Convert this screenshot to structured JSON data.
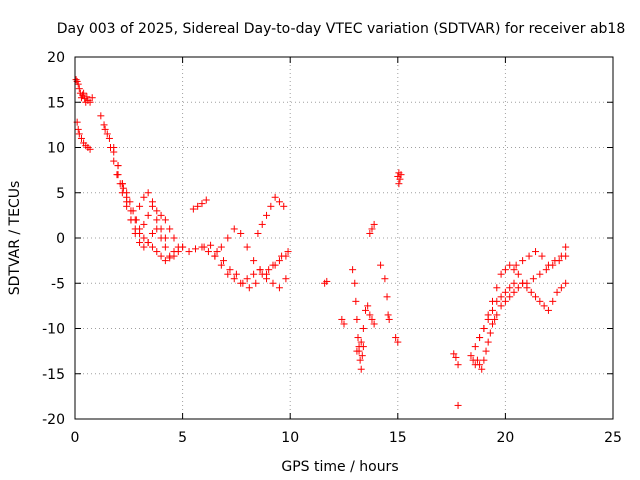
{
  "chart_data": {
    "type": "scatter",
    "title": "Day 003 of 2025, Sidereal Day-to-day VTEC variation (SDTVAR) for receiver ab18",
    "xlabel": "GPS time / hours",
    "ylabel": "SDTVAR / TECUs",
    "xlim": [
      0,
      25
    ],
    "ylim": [
      -20,
      20
    ],
    "xticks": [
      0,
      5,
      10,
      15,
      20,
      25
    ],
    "yticks": [
      -20,
      -15,
      -10,
      -5,
      0,
      5,
      10,
      15,
      20
    ],
    "grid": true,
    "marker": "plus",
    "color": "#ff0000",
    "series": [
      {
        "x": [
          0.05,
          0.1,
          0.15,
          0.2,
          0.25,
          0.3,
          0.35,
          0.4,
          0.45,
          0.5,
          0.55,
          0.6,
          0.7,
          0.8,
          0.1,
          0.15,
          0.2,
          0.3,
          0.4,
          0.5,
          0.6,
          0.7,
          1.2,
          1.35,
          1.5,
          1.65,
          1.8,
          1.95,
          2.1,
          2.25,
          2.4,
          2.55,
          2.7,
          2.85,
          3.0,
          3.2,
          3.4,
          3.6,
          3.8,
          4.0,
          4.2,
          4.4,
          4.6,
          4.8,
          5.0,
          1.4,
          1.6,
          1.8,
          2.0,
          2.2,
          2.4,
          2.6,
          2.8,
          3.0,
          3.2,
          3.4,
          3.6,
          3.8,
          4.0,
          4.2,
          4.4,
          4.6,
          4.8,
          1.8,
          2.0,
          2.2,
          2.4,
          2.6,
          2.8,
          3.0,
          3.2,
          3.4,
          3.6,
          3.8,
          4.0,
          4.2,
          4.4,
          4.6,
          2.0,
          2.2,
          2.4,
          2.6,
          2.8,
          3.0,
          3.2,
          3.4,
          3.6,
          3.8,
          4.0,
          4.2,
          5.0,
          5.3,
          5.6,
          5.9,
          6.2,
          6.5,
          6.8,
          7.1,
          7.4,
          7.7,
          8.0,
          8.3,
          8.6,
          8.9,
          9.2,
          9.5,
          9.8,
          5.5,
          5.7,
          5.9,
          6.1,
          6.0,
          6.3,
          6.6,
          6.9,
          7.2,
          7.5,
          7.8,
          8.1,
          8.4,
          8.7,
          9.0,
          9.3,
          9.6,
          9.9,
          6.5,
          6.8,
          7.1,
          7.4,
          7.7,
          8.0,
          8.3,
          8.6,
          8.9,
          9.2,
          9.5,
          9.8,
          8.5,
          8.7,
          8.9,
          9.1,
          9.3,
          9.5,
          9.7,
          11.6,
          11.7,
          12.4,
          12.5,
          12.9,
          13.0,
          13.05,
          13.1,
          13.15,
          13.2,
          13.25,
          13.3,
          13.35,
          13.4,
          13.1,
          13.2,
          13.3,
          13.4,
          13.5,
          13.6,
          13.7,
          13.8,
          13.9,
          13.7,
          13.8,
          13.9,
          14.2,
          14.4,
          14.5,
          14.55,
          14.6,
          14.9,
          15.0,
          15.05,
          15.1,
          15.15,
          15.0,
          15.05,
          17.6,
          17.7,
          17.8,
          17.8,
          18.4,
          18.5,
          18.6,
          18.7,
          18.8,
          18.9,
          19.0,
          19.1,
          19.2,
          19.3,
          19.4,
          19.5,
          19.6,
          19.8,
          20.0,
          20.2,
          20.4,
          18.6,
          18.8,
          19.0,
          19.2,
          19.4,
          19.6,
          19.8,
          20.0,
          20.2,
          20.4,
          20.6,
          20.8,
          18.8,
          19.0,
          19.2,
          19.4,
          19.6,
          19.8,
          20.0,
          20.2,
          20.4,
          20.6,
          20.8,
          21.0,
          21.2,
          21.4,
          21.6,
          21.8,
          22.0,
          22.2,
          22.4,
          22.6,
          22.8,
          20.5,
          20.8,
          21.1,
          21.4,
          21.7,
          22.0,
          22.3,
          22.6,
          22.8,
          21.0,
          21.3,
          21.6,
          21.9,
          22.2,
          22.5,
          22.8
        ],
        "y": [
          17.5,
          17.3,
          17.0,
          16.5,
          16.0,
          15.5,
          15.8,
          16.0,
          15.4,
          15.0,
          15.6,
          15.2,
          15.0,
          15.5,
          12.8,
          12.0,
          11.5,
          11.0,
          10.5,
          10.2,
          10.0,
          9.8,
          13.5,
          12.5,
          11.5,
          10.0,
          8.5,
          7.0,
          6.0,
          5.5,
          5.0,
          4.0,
          3.0,
          2.0,
          1.0,
          0.0,
          -0.5,
          -1.0,
          -1.5,
          -2.0,
          -2.5,
          -2.2,
          -2.0,
          -1.5,
          -1.0,
          12.0,
          11.0,
          10.0,
          8.0,
          6.0,
          4.0,
          2.0,
          0.5,
          -0.5,
          -1.0,
          -0.5,
          0.5,
          1.0,
          0.0,
          -1.0,
          -2.0,
          -1.5,
          -1.0,
          9.5,
          8.0,
          6.0,
          4.5,
          3.0,
          2.0,
          3.5,
          4.5,
          5.0,
          4.0,
          3.0,
          2.5,
          2.0,
          1.0,
          0.0,
          7.0,
          5.0,
          3.5,
          2.0,
          1.0,
          0.5,
          1.5,
          2.5,
          3.5,
          2.0,
          1.0,
          0.0,
          -1.0,
          -1.5,
          -1.2,
          -1.0,
          -1.5,
          -2.0,
          -3.0,
          -4.0,
          -4.5,
          -5.0,
          -4.5,
          -4.0,
          -3.5,
          -4.0,
          -3.0,
          -2.5,
          -2.0,
          3.2,
          3.5,
          3.8,
          4.2,
          -1.0,
          -0.8,
          -1.5,
          -2.5,
          -3.5,
          -4.0,
          -5.0,
          -5.5,
          -5.0,
          -4.0,
          -3.5,
          -3.0,
          -2.0,
          -1.5,
          -2.0,
          -1.0,
          0.0,
          1.0,
          0.5,
          -1.0,
          -2.5,
          -3.5,
          -4.5,
          -5.0,
          -5.5,
          -4.5,
          0.5,
          1.5,
          2.5,
          3.5,
          4.5,
          4.0,
          3.5,
          -5.0,
          -4.8,
          -9.0,
          -9.5,
          -3.5,
          -5.0,
          -7.0,
          -9.0,
          -11.0,
          -12.5,
          -13.5,
          -14.5,
          -13.0,
          -12.0,
          -12.5,
          -12.0,
          -11.5,
          -10.0,
          -8.0,
          -7.5,
          -8.5,
          -9.0,
          -9.5,
          0.5,
          1.0,
          1.5,
          -3.0,
          -4.5,
          -6.5,
          -8.5,
          -9.0,
          -11.0,
          -11.5,
          6.0,
          6.5,
          7.0,
          6.8,
          7.2,
          -12.8,
          -13.2,
          -14.0,
          -18.5,
          -13.0,
          -13.5,
          -14.0,
          -13.5,
          -14.0,
          -14.5,
          -13.5,
          -12.5,
          -11.5,
          -10.5,
          -9.5,
          -9.0,
          -8.5,
          -7.5,
          -7.0,
          -6.5,
          -6.0,
          -12.0,
          -11.0,
          -10.0,
          -9.0,
          -8.0,
          -7.0,
          -6.5,
          -6.0,
          -5.5,
          -5.0,
          -5.5,
          -5.0,
          -11.0,
          -10.0,
          -8.5,
          -7.0,
          -5.5,
          -4.0,
          -3.5,
          -3.0,
          -3.5,
          -4.0,
          -5.0,
          -5.5,
          -6.0,
          -6.5,
          -7.0,
          -7.5,
          -8.0,
          -7.0,
          -6.0,
          -5.5,
          -5.0,
          -3.0,
          -2.5,
          -2.0,
          -1.5,
          -2.0,
          -3.0,
          -2.5,
          -2.0,
          -1.0,
          -5.0,
          -4.5,
          -4.0,
          -3.5,
          -3.0,
          -2.5,
          -2.0
        ]
      }
    ]
  }
}
